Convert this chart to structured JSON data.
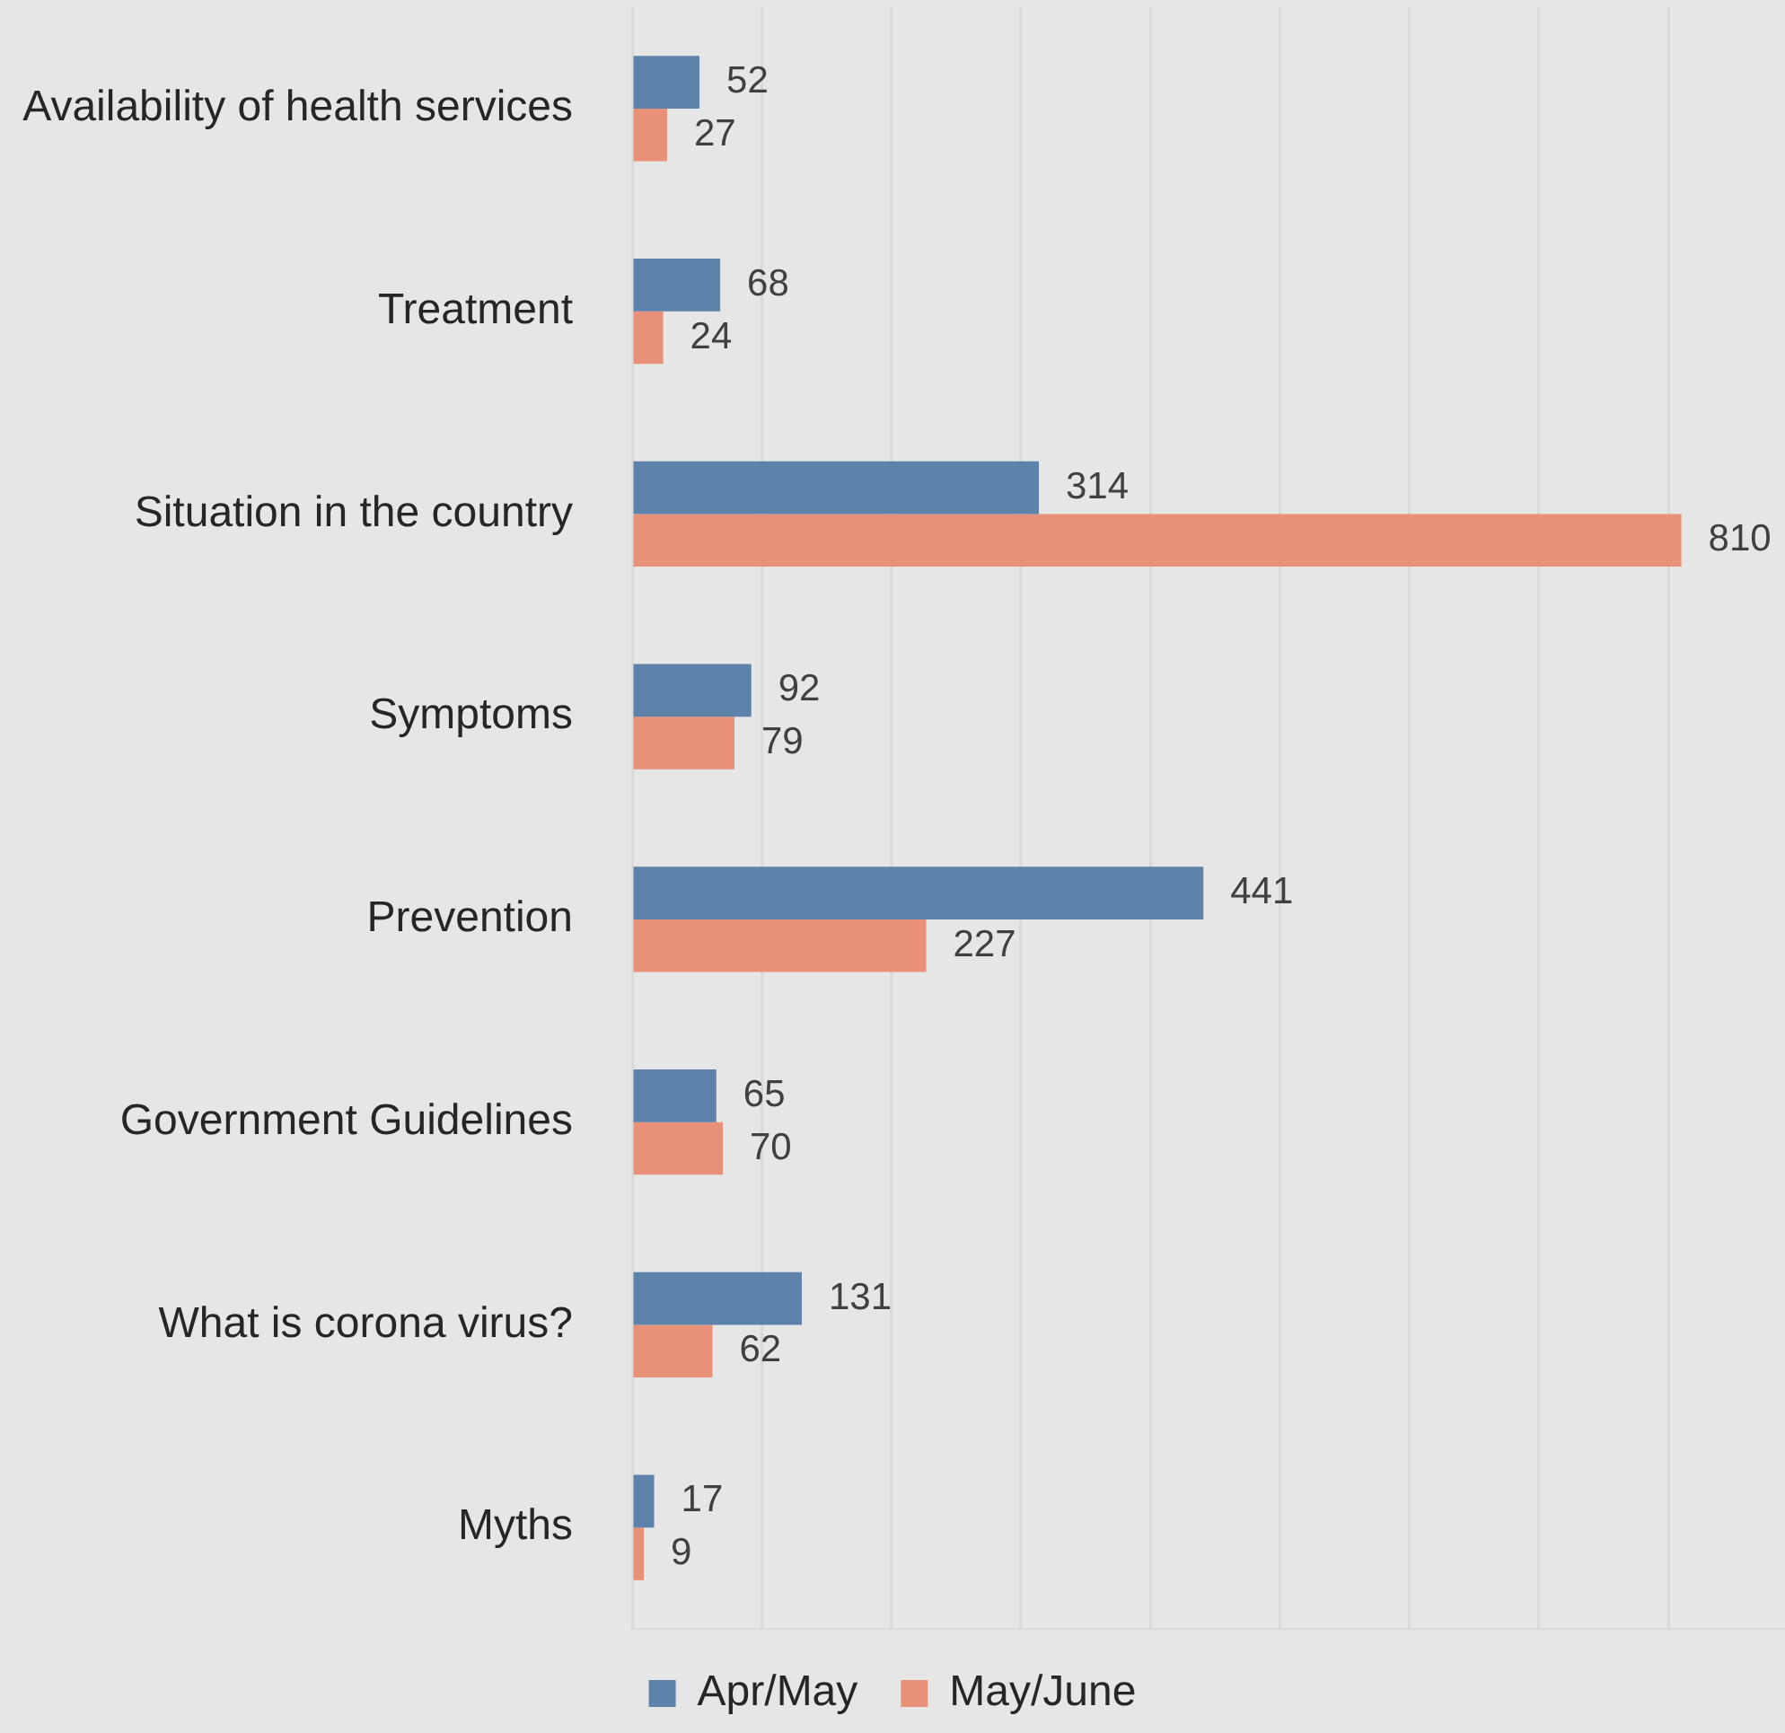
{
  "chart_data": {
    "type": "bar",
    "orientation": "horizontal",
    "categories": [
      "Availability of health services",
      "Treatment",
      "Situation in the country",
      "Symptoms",
      "Prevention",
      "Government Guidelines",
      "What is corona virus?",
      "Myths"
    ],
    "series": [
      {
        "name": "Apr/May",
        "color": "#5e83aa",
        "values": [
          52,
          68,
          314,
          92,
          441,
          65,
          131,
          17
        ]
      },
      {
        "name": "May/June",
        "color": "#e89178",
        "values": [
          27,
          24,
          810,
          79,
          227,
          70,
          62,
          9
        ]
      }
    ],
    "xlim": [
      0,
      890
    ],
    "xticks": [
      {
        "value": 0,
        "label": null
      },
      {
        "value": 100,
        "label": null
      },
      {
        "value": 200,
        "label": null
      },
      {
        "value": 300,
        "label": null
      },
      {
        "value": 400,
        "label": null
      },
      {
        "value": 500,
        "label": null
      },
      {
        "value": 600,
        "label": null
      },
      {
        "value": 700,
        "label": null
      },
      {
        "value": 800,
        "label": null
      }
    ],
    "grid": "x",
    "tick_labels": "y",
    "data_labels": true,
    "legend": "bottom"
  }
}
